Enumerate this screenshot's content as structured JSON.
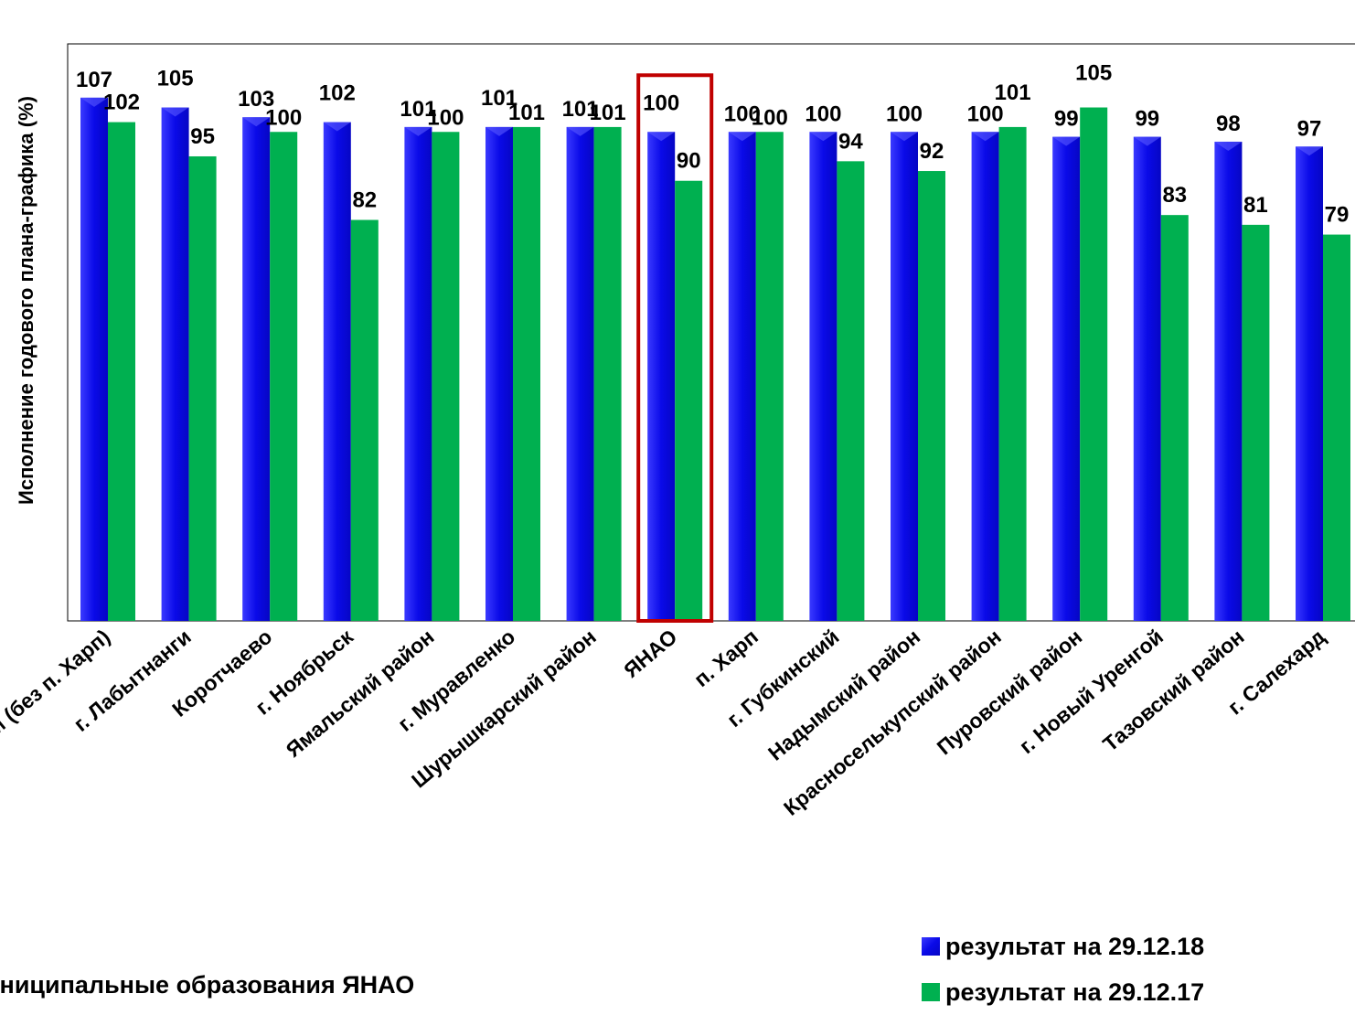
{
  "chart_data": {
    "type": "bar",
    "title": "",
    "ylabel": "Исполнение годового плана-графика (%)",
    "xlabel": "Муниципальные образования ЯНАО",
    "ylim": [
      0,
      118
    ],
    "grid": false,
    "legend_position": "bottom-right",
    "highlight_category": "ЯНАО",
    "highlight_color": "#c00000",
    "categories": [
      "г. Лабытнанги (без п. Харп)",
      "г. Лабытнанги",
      "Коротчаево",
      "г. Ноябрьск",
      "Ямальский район",
      "г. Муравленко",
      "Шурышкарский район",
      "ЯНАО",
      "п. Харп",
      "г. Губкинский",
      "Надымский район",
      "Красноселькупский район",
      "Пуровский район",
      "г. Новый Уренгой",
      "Тазовский район",
      "г. Салехард"
    ],
    "series": [
      {
        "name": "результат на 29.12.18",
        "color": "#0a0ae8",
        "values": [
          107,
          105,
          103,
          102,
          101,
          101,
          101,
          100,
          100,
          100,
          100,
          100,
          99,
          99,
          98,
          97
        ]
      },
      {
        "name": "результат на 29.12.17",
        "color": "#00b050",
        "values": [
          102,
          95,
          100,
          82,
          100,
          101,
          101,
          90,
          100,
          94,
          92,
          101,
          105,
          83,
          81,
          79
        ]
      }
    ]
  }
}
